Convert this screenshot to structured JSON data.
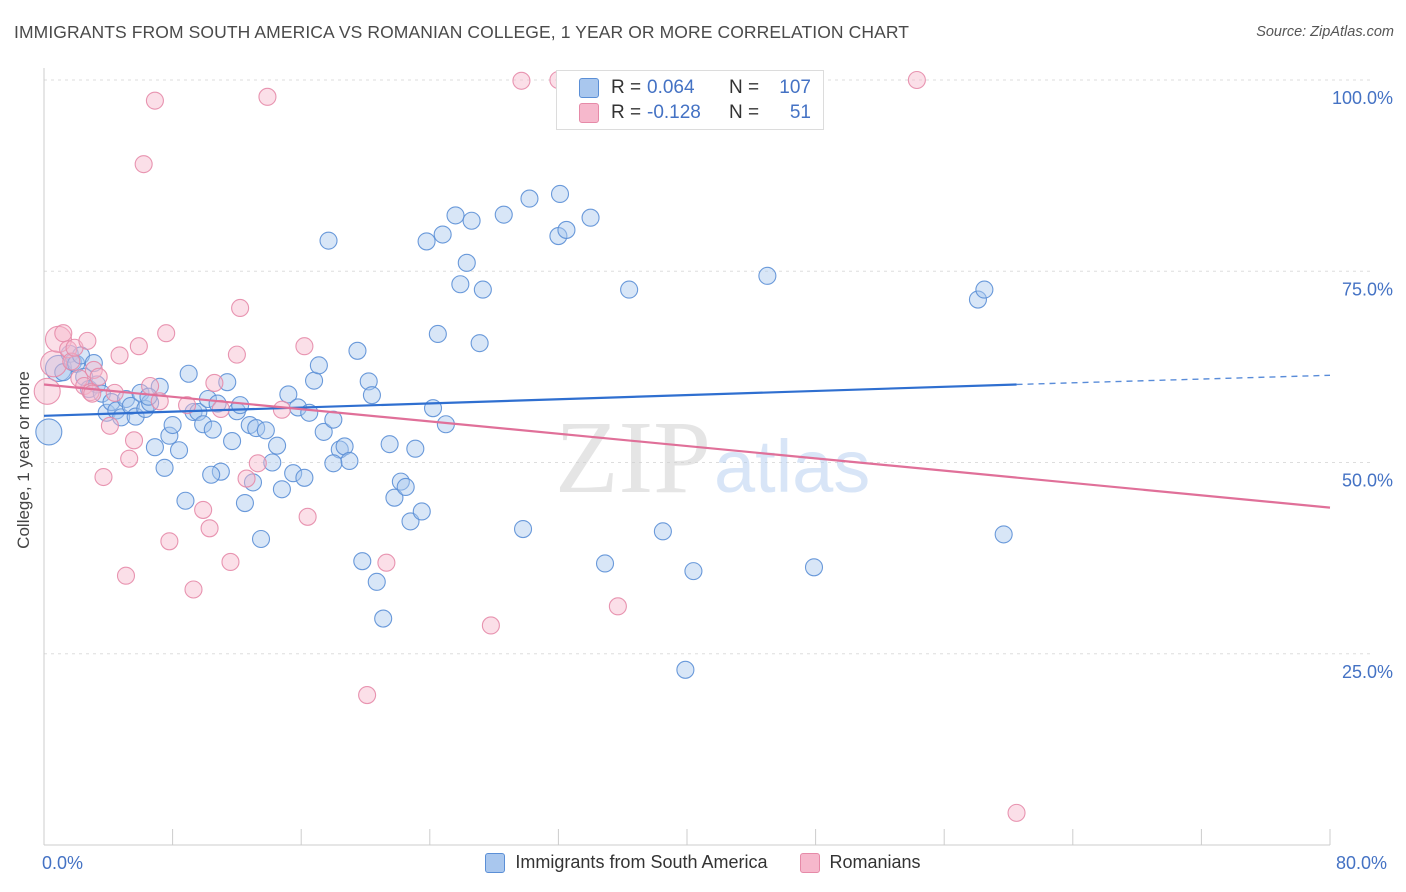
{
  "title": "IMMIGRANTS FROM SOUTH AMERICA VS ROMANIAN COLLEGE, 1 YEAR OR MORE CORRELATION CHART",
  "source": "Source: ZipAtlas.com",
  "watermark": {
    "zip": "ZIP",
    "atlas": "atlas"
  },
  "stats": {
    "r_label": "R =",
    "n_label": "N =",
    "blue": {
      "r": "0.064",
      "n": "107"
    },
    "pink": {
      "r": "-0.128",
      "n": "51"
    }
  },
  "colors": {
    "blue_fill": "#a9c7ee",
    "blue_stroke": "#5b8fd6",
    "blue_line": "#2f6fd0",
    "pink_fill": "#f6b8cc",
    "pink_stroke": "#e68aa8",
    "pink_line": "#e07099",
    "axis_text": "#4472c4",
    "grid": "#dddddd"
  },
  "chart_data": {
    "type": "scatter",
    "title": "IMMIGRANTS FROM SOUTH AMERICA VS ROMANIAN COLLEGE, 1 YEAR OR MORE CORRELATION CHART",
    "xlabel": "",
    "ylabel": "College, 1 year or more",
    "xlim": [
      0,
      80
    ],
    "ylim": [
      0,
      100
    ],
    "x_tick_labels": {
      "min": "0.0%",
      "max": "80.0%"
    },
    "y_tick_labels": [
      "100.0%",
      "75.0%",
      "50.0%",
      "25.0%"
    ],
    "y_ticks": [
      100,
      75,
      50,
      25
    ],
    "legend": [
      "Immigrants from South America",
      "Romanians"
    ],
    "series": [
      {
        "name": "Immigrants from South America",
        "color": "blue",
        "trend": {
          "x0": 0,
          "y0": 56.1,
          "x1": 60.5,
          "y1": 60.2,
          "dash_to_x": 80,
          "dash_to_y": 61.4
        },
        "points": [
          [
            0.3,
            54.0
          ],
          [
            0.9,
            62.3
          ],
          [
            1.2,
            61.8
          ],
          [
            1.6,
            64.2
          ],
          [
            1.8,
            63.1
          ],
          [
            2.0,
            62.9
          ],
          [
            2.3,
            64.0
          ],
          [
            2.5,
            61.2
          ],
          [
            2.8,
            59.6
          ],
          [
            3.1,
            63.0
          ],
          [
            3.3,
            60.2
          ],
          [
            3.6,
            59.0
          ],
          [
            3.9,
            56.5
          ],
          [
            4.2,
            57.9
          ],
          [
            4.5,
            56.8
          ],
          [
            4.8,
            55.9
          ],
          [
            5.1,
            58.3
          ],
          [
            5.4,
            57.4
          ],
          [
            5.7,
            56.0
          ],
          [
            6.0,
            59.1
          ],
          [
            6.3,
            57.0
          ],
          [
            6.6,
            57.8
          ],
          [
            6.9,
            52.0
          ],
          [
            7.2,
            59.9
          ],
          [
            7.5,
            49.3
          ],
          [
            7.8,
            53.5
          ],
          [
            8.0,
            54.9
          ],
          [
            8.4,
            51.6
          ],
          [
            8.8,
            45.0
          ],
          [
            9.0,
            61.6
          ],
          [
            9.3,
            56.6
          ],
          [
            9.6,
            56.6
          ],
          [
            9.9,
            55.0
          ],
          [
            10.2,
            58.3
          ],
          [
            10.5,
            54.3
          ],
          [
            10.8,
            57.7
          ],
          [
            11.0,
            48.8
          ],
          [
            11.4,
            60.5
          ],
          [
            11.7,
            52.8
          ],
          [
            12.0,
            56.7
          ],
          [
            12.2,
            57.5
          ],
          [
            12.5,
            44.7
          ],
          [
            12.8,
            54.9
          ],
          [
            13.2,
            54.5
          ],
          [
            13.5,
            40.0
          ],
          [
            13.8,
            54.2
          ],
          [
            14.2,
            50.0
          ],
          [
            14.5,
            52.2
          ],
          [
            14.8,
            46.5
          ],
          [
            15.2,
            58.9
          ],
          [
            15.5,
            48.6
          ],
          [
            15.8,
            57.2
          ],
          [
            16.2,
            48.0
          ],
          [
            16.5,
            56.5
          ],
          [
            16.8,
            60.7
          ],
          [
            17.1,
            62.7
          ],
          [
            17.4,
            54.0
          ],
          [
            17.7,
            79.0
          ],
          [
            18.0,
            55.6
          ],
          [
            18.4,
            51.7
          ],
          [
            18.7,
            52.1
          ],
          [
            19.0,
            50.2
          ],
          [
            19.5,
            64.6
          ],
          [
            19.8,
            37.1
          ],
          [
            20.2,
            60.6
          ],
          [
            20.4,
            58.8
          ],
          [
            20.7,
            34.4
          ],
          [
            21.1,
            29.6
          ],
          [
            21.5,
            52.4
          ],
          [
            21.8,
            45.4
          ],
          [
            22.2,
            47.5
          ],
          [
            22.5,
            46.8
          ],
          [
            22.8,
            42.3
          ],
          [
            23.1,
            51.8
          ],
          [
            23.5,
            43.6
          ],
          [
            23.8,
            78.9
          ],
          [
            24.2,
            57.1
          ],
          [
            24.5,
            66.8
          ],
          [
            24.8,
            79.8
          ],
          [
            25.0,
            55.0
          ],
          [
            25.6,
            82.3
          ],
          [
            25.9,
            73.3
          ],
          [
            26.3,
            76.1
          ],
          [
            26.6,
            81.6
          ],
          [
            27.1,
            65.6
          ],
          [
            27.3,
            72.6
          ],
          [
            28.6,
            82.4
          ],
          [
            29.8,
            41.3
          ],
          [
            30.2,
            84.5
          ],
          [
            32.0,
            79.6
          ],
          [
            32.1,
            85.1
          ],
          [
            32.5,
            80.4
          ],
          [
            34.0,
            82.0
          ],
          [
            34.9,
            36.8
          ],
          [
            36.4,
            72.6
          ],
          [
            38.5,
            41.0
          ],
          [
            39.9,
            22.9
          ],
          [
            40.4,
            35.8
          ],
          [
            45.0,
            74.4
          ],
          [
            47.9,
            36.3
          ],
          [
            58.1,
            71.3
          ],
          [
            58.5,
            72.6
          ],
          [
            59.7,
            40.6
          ],
          [
            18.0,
            49.9
          ],
          [
            13.0,
            47.4
          ],
          [
            10.4,
            48.4
          ],
          [
            6.5,
            58.6
          ]
        ]
      },
      {
        "name": "Romanians",
        "color": "pink",
        "trend": {
          "x0": 0,
          "y0": 60.2,
          "x1": 80,
          "y1": 44.1
        },
        "points": [
          [
            0.2,
            59.3
          ],
          [
            0.6,
            62.9
          ],
          [
            0.9,
            66.1
          ],
          [
            1.2,
            66.9
          ],
          [
            1.5,
            64.8
          ],
          [
            1.7,
            63.2
          ],
          [
            1.9,
            65.0
          ],
          [
            2.2,
            61.0
          ],
          [
            2.5,
            60.0
          ],
          [
            2.7,
            65.9
          ],
          [
            2.9,
            59.2
          ],
          [
            3.1,
            62.1
          ],
          [
            3.4,
            61.2
          ],
          [
            3.7,
            48.1
          ],
          [
            4.1,
            54.8
          ],
          [
            4.4,
            59.1
          ],
          [
            4.7,
            64.0
          ],
          [
            5.1,
            35.2
          ],
          [
            5.3,
            50.5
          ],
          [
            5.6,
            52.9
          ],
          [
            5.9,
            65.2
          ],
          [
            6.2,
            89.0
          ],
          [
            6.6,
            60.0
          ],
          [
            6.9,
            97.3
          ],
          [
            7.2,
            58.0
          ],
          [
            7.6,
            66.9
          ],
          [
            7.8,
            39.7
          ],
          [
            9.3,
            33.4
          ],
          [
            9.9,
            43.8
          ],
          [
            10.3,
            41.4
          ],
          [
            10.6,
            60.4
          ],
          [
            11.0,
            57.0
          ],
          [
            11.6,
            37.0
          ],
          [
            12.0,
            64.1
          ],
          [
            12.2,
            70.2
          ],
          [
            12.6,
            47.9
          ],
          [
            13.3,
            49.9
          ],
          [
            13.9,
            97.8
          ],
          [
            14.8,
            56.9
          ],
          [
            16.2,
            65.2
          ],
          [
            16.4,
            42.9
          ],
          [
            20.1,
            19.6
          ],
          [
            21.3,
            36.9
          ],
          [
            27.8,
            28.7
          ],
          [
            29.7,
            99.9
          ],
          [
            32.0,
            100.0
          ],
          [
            35.7,
            31.2
          ],
          [
            54.3,
            100.0
          ],
          [
            60.5,
            4.2
          ],
          [
            8.9,
            57.5
          ],
          [
            3.0,
            59.0
          ]
        ]
      }
    ]
  }
}
